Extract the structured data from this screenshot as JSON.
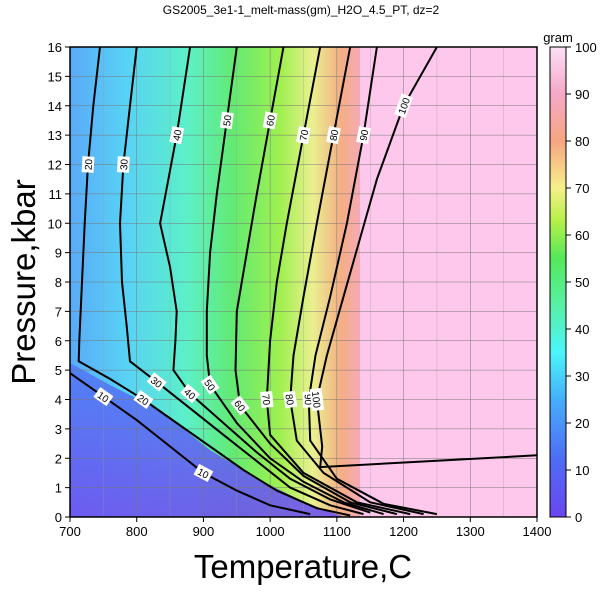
{
  "chart_data": {
    "type": "heatmap",
    "title": "GS2005_3e1-1_melt-mass(gm)_H2O_4.5_PT, dz=2",
    "xlabel": "Temperature,C",
    "ylabel": "Pressure,kbar",
    "xlim": [
      700,
      1400
    ],
    "ylim": [
      0,
      16
    ],
    "x_ticks": [
      "700",
      "800",
      "900",
      "1000",
      "1100",
      "1200",
      "1300",
      "1400"
    ],
    "y_ticks": [
      "0",
      "1",
      "2",
      "3",
      "4",
      "5",
      "6",
      "7",
      "8",
      "9",
      "10",
      "11",
      "12",
      "13",
      "14",
      "15",
      "16"
    ],
    "grid": true,
    "colorbar": {
      "label": "gram",
      "range": [
        0,
        100
      ],
      "ticks": [
        "0",
        "10",
        "20",
        "30",
        "40",
        "50",
        "60",
        "70",
        "80",
        "90",
        "100"
      ]
    },
    "contour_interval": 2,
    "labeled_contours": [
      {
        "level": 10,
        "label": "10",
        "points": [
          [
            700,
            4.9
          ],
          [
            750,
            4.1
          ],
          [
            800,
            3.3
          ],
          [
            850,
            2.4
          ],
          [
            900,
            1.5
          ],
          [
            950,
            0.9
          ],
          [
            1000,
            0.4
          ],
          [
            1060,
            0.1
          ]
        ]
      },
      {
        "level": 20,
        "label": "20",
        "points": [
          [
            745,
            16
          ],
          [
            735,
            14
          ],
          [
            727,
            12
          ],
          [
            722,
            10
          ],
          [
            718,
            8
          ],
          [
            714,
            6
          ],
          [
            713,
            5.3
          ],
          [
            760,
            4.7
          ],
          [
            810,
            4.0
          ],
          [
            860,
            3.2
          ],
          [
            910,
            2.4
          ],
          [
            960,
            1.6
          ],
          [
            1010,
            0.9
          ],
          [
            1070,
            0.3
          ],
          [
            1120,
            0.05
          ]
        ]
      },
      {
        "level": 30,
        "label": "30",
        "points": [
          [
            800,
            16
          ],
          [
            790,
            14
          ],
          [
            780,
            12
          ],
          [
            775,
            10
          ],
          [
            778,
            8
          ],
          [
            785,
            6.5
          ],
          [
            790,
            5.3
          ],
          [
            830,
            4.6
          ],
          [
            880,
            3.7
          ],
          [
            930,
            2.8
          ],
          [
            980,
            1.9
          ],
          [
            1030,
            1.0
          ],
          [
            1090,
            0.4
          ],
          [
            1140,
            0.1
          ]
        ]
      },
      {
        "level": 40,
        "label": "40",
        "points": [
          [
            880,
            16
          ],
          [
            860,
            13
          ],
          [
            835,
            10
          ],
          [
            850,
            8.5
          ],
          [
            860,
            7
          ],
          [
            858,
            6
          ],
          [
            855,
            5.0
          ],
          [
            880,
            4.2
          ],
          [
            930,
            3.2
          ],
          [
            980,
            2.2
          ],
          [
            1030,
            1.3
          ],
          [
            1090,
            0.6
          ],
          [
            1150,
            0.15
          ]
        ]
      },
      {
        "level": 50,
        "label": "50",
        "points": [
          [
            950,
            16
          ],
          [
            935,
            13.5
          ],
          [
            920,
            11
          ],
          [
            910,
            9
          ],
          [
            905,
            7
          ],
          [
            905,
            5.5
          ],
          [
            910,
            4.5
          ],
          [
            950,
            3.2
          ],
          [
            1000,
            2.0
          ],
          [
            1050,
            1.2
          ],
          [
            1110,
            0.5
          ],
          [
            1170,
            0.1
          ]
        ]
      },
      {
        "level": 60,
        "label": "60",
        "points": [
          [
            1020,
            16
          ],
          [
            1000,
            13.5
          ],
          [
            980,
            11
          ],
          [
            965,
            9
          ],
          [
            950,
            7
          ],
          [
            948,
            5
          ],
          [
            955,
            3.8
          ],
          [
            1000,
            2.5
          ],
          [
            1050,
            1.4
          ],
          [
            1120,
            0.5
          ],
          [
            1190,
            0.1
          ]
        ]
      },
      {
        "level": 70,
        "label": "70",
        "points": [
          [
            1075,
            16
          ],
          [
            1050,
            13
          ],
          [
            1025,
            10
          ],
          [
            1010,
            8
          ],
          [
            1000,
            6
          ],
          [
            995,
            4
          ],
          [
            1000,
            2.8
          ],
          [
            1050,
            1.5
          ],
          [
            1130,
            0.5
          ],
          [
            1210,
            0.1
          ]
        ]
      },
      {
        "level": 80,
        "label": "80",
        "points": [
          [
            1120,
            16
          ],
          [
            1095,
            13
          ],
          [
            1070,
            10
          ],
          [
            1050,
            7.5
          ],
          [
            1035,
            5.5
          ],
          [
            1030,
            4
          ],
          [
            1040,
            2.6
          ],
          [
            1080,
            1.5
          ],
          [
            1150,
            0.5
          ],
          [
            1230,
            0.1
          ]
        ]
      },
      {
        "level": 90,
        "label": "90",
        "points": [
          [
            1160,
            16
          ],
          [
            1140,
            13
          ],
          [
            1115,
            10
          ],
          [
            1090,
            7.5
          ],
          [
            1068,
            5.5
          ],
          [
            1058,
            4
          ],
          [
            1060,
            2.6
          ],
          [
            1100,
            1.3
          ],
          [
            1170,
            0.45
          ],
          [
            1250,
            0.1
          ]
        ]
      },
      {
        "level": 100,
        "label": "100",
        "points": [
          [
            1250,
            16
          ],
          [
            1200,
            14
          ],
          [
            1160,
            11.5
          ],
          [
            1135,
            9.5
          ],
          [
            1110,
            7.5
          ],
          [
            1085,
            5.5
          ],
          [
            1070,
            4
          ],
          [
            1075,
            3.0
          ],
          [
            1078,
            2.4
          ],
          [
            1075,
            1.7
          ],
          [
            1400,
            2.1
          ]
        ]
      }
    ]
  }
}
